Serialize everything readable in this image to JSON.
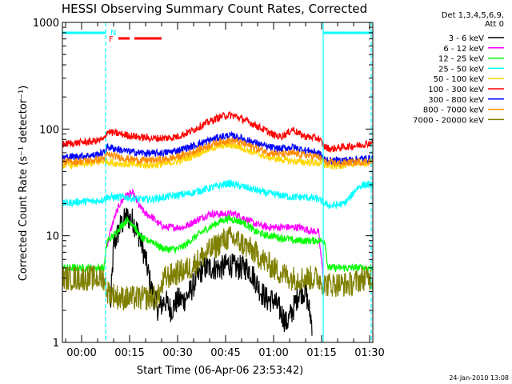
{
  "chart_data": {
    "type": "line",
    "title": "HESSI Observing Summary Count Rates, Corrected",
    "xlabel": "Start Time (06-Apr-06 23:53:42)",
    "ylabel": "Corrected Count Rate (s⁻¹ detector⁻¹)",
    "yscale": "log",
    "xlim": [
      -6,
      91
    ],
    "ylim": [
      1,
      1000
    ],
    "x_unit": "minutes after 00:00",
    "x_ticks": [
      {
        "value": 0,
        "label": "00:00"
      },
      {
        "value": 15,
        "label": "00:15"
      },
      {
        "value": 30,
        "label": "00:30"
      },
      {
        "value": 45,
        "label": "00:45"
      },
      {
        "value": 60,
        "label": "01:00"
      },
      {
        "value": 75,
        "label": "01:15"
      },
      {
        "value": 90,
        "label": "01:30"
      }
    ],
    "y_ticks": [
      {
        "value": 1,
        "label": "1"
      },
      {
        "value": 10,
        "label": "10"
      },
      {
        "value": 100,
        "label": "100"
      },
      {
        "value": 1000,
        "label": "1000"
      }
    ],
    "legend_position": "top-right, outside plot",
    "legend_header": [
      "Det 1,3,4,5,6,9,",
      "Att 0"
    ],
    "series": [
      {
        "name": "3 - 6 keV",
        "color": "#000000",
        "points": [
          [
            -6,
            null
          ],
          [
            8,
            null
          ],
          [
            9,
            2
          ],
          [
            10,
            8
          ],
          [
            12,
            12
          ],
          [
            14,
            15
          ],
          [
            16,
            14
          ],
          [
            18,
            10
          ],
          [
            20,
            6
          ],
          [
            22,
            3
          ],
          [
            24,
            2
          ],
          [
            26,
            2.5
          ],
          [
            28,
            2
          ],
          [
            30,
            2.5
          ],
          [
            32,
            2.5
          ],
          [
            34,
            3
          ],
          [
            36,
            4
          ],
          [
            38,
            5
          ],
          [
            40,
            5
          ],
          [
            42,
            5
          ],
          [
            44,
            5
          ],
          [
            46,
            5.5
          ],
          [
            48,
            5
          ],
          [
            50,
            5
          ],
          [
            52,
            5
          ],
          [
            54,
            4
          ],
          [
            56,
            3
          ],
          [
            58,
            2.5
          ],
          [
            60,
            2.5
          ],
          [
            62,
            2
          ],
          [
            64,
            1.5
          ],
          [
            66,
            2
          ],
          [
            68,
            3
          ],
          [
            70,
            3
          ],
          [
            72,
            1.5
          ],
          [
            74,
            null
          ],
          [
            91,
            null
          ]
        ]
      },
      {
        "name": "6 - 12 keV",
        "color": "#ff00ff",
        "points": [
          [
            -6,
            null
          ],
          [
            7,
            null
          ],
          [
            8,
            8
          ],
          [
            9,
            11
          ],
          [
            10,
            14
          ],
          [
            12,
            20
          ],
          [
            14,
            24
          ],
          [
            16,
            25
          ],
          [
            18,
            19
          ],
          [
            20,
            16
          ],
          [
            22,
            15
          ],
          [
            24,
            13
          ],
          [
            26,
            12
          ],
          [
            28,
            12
          ],
          [
            30,
            12
          ],
          [
            32,
            12
          ],
          [
            34,
            13
          ],
          [
            36,
            14
          ],
          [
            38,
            15
          ],
          [
            40,
            16
          ],
          [
            42,
            16
          ],
          [
            44,
            16
          ],
          [
            46,
            16
          ],
          [
            48,
            16
          ],
          [
            50,
            15
          ],
          [
            52,
            14
          ],
          [
            54,
            13
          ],
          [
            56,
            12.5
          ],
          [
            58,
            12
          ],
          [
            60,
            12
          ],
          [
            62,
            12
          ],
          [
            64,
            12
          ],
          [
            66,
            12
          ],
          [
            68,
            12
          ],
          [
            70,
            11.5
          ],
          [
            72,
            11
          ],
          [
            74,
            11
          ],
          [
            76,
            3
          ],
          [
            77,
            null
          ],
          [
            91,
            null
          ]
        ]
      },
      {
        "name": "12 - 25 keV",
        "color": "#00ff00",
        "points": [
          [
            -6,
            5
          ],
          [
            0,
            5
          ],
          [
            4,
            5
          ],
          [
            7,
            5
          ],
          [
            8,
            9
          ],
          [
            10,
            10
          ],
          [
            12,
            12
          ],
          [
            14,
            14
          ],
          [
            16,
            13
          ],
          [
            18,
            10
          ],
          [
            20,
            9
          ],
          [
            22,
            9
          ],
          [
            24,
            8
          ],
          [
            26,
            7.5
          ],
          [
            28,
            7.5
          ],
          [
            30,
            7.5
          ],
          [
            32,
            8
          ],
          [
            34,
            9
          ],
          [
            36,
            10
          ],
          [
            38,
            11
          ],
          [
            40,
            12
          ],
          [
            42,
            13
          ],
          [
            44,
            14
          ],
          [
            46,
            14.5
          ],
          [
            48,
            14
          ],
          [
            50,
            13.5
          ],
          [
            52,
            12.5
          ],
          [
            54,
            11
          ],
          [
            56,
            10.5
          ],
          [
            58,
            10
          ],
          [
            60,
            10
          ],
          [
            62,
            9.5
          ],
          [
            64,
            9.5
          ],
          [
            66,
            9
          ],
          [
            68,
            9
          ],
          [
            70,
            9
          ],
          [
            72,
            9
          ],
          [
            74,
            9
          ],
          [
            76,
            9
          ],
          [
            77,
            5
          ],
          [
            80,
            5
          ],
          [
            84,
            5
          ],
          [
            88,
            5
          ],
          [
            91,
            5
          ]
        ]
      },
      {
        "name": "25 - 50 keV",
        "color": "#00ffff",
        "points": [
          [
            -6,
            20
          ],
          [
            0,
            21
          ],
          [
            4,
            21
          ],
          [
            7,
            22
          ],
          [
            8,
            23
          ],
          [
            10,
            23
          ],
          [
            14,
            23
          ],
          [
            18,
            22
          ],
          [
            22,
            22
          ],
          [
            26,
            23
          ],
          [
            30,
            24
          ],
          [
            34,
            25
          ],
          [
            38,
            27
          ],
          [
            42,
            29
          ],
          [
            44,
            30
          ],
          [
            46,
            31
          ],
          [
            48,
            30
          ],
          [
            50,
            29
          ],
          [
            54,
            27
          ],
          [
            58,
            25
          ],
          [
            62,
            24
          ],
          [
            66,
            23
          ],
          [
            70,
            23
          ],
          [
            74,
            22
          ],
          [
            76,
            20
          ],
          [
            78,
            19
          ],
          [
            82,
            20
          ],
          [
            84,
            23
          ],
          [
            86,
            28
          ],
          [
            88,
            30
          ],
          [
            91,
            30
          ]
        ]
      },
      {
        "name": "50 - 100 keV",
        "color": "#ffd700",
        "points": [
          [
            -6,
            46
          ],
          [
            0,
            47
          ],
          [
            4,
            48
          ],
          [
            7,
            50
          ],
          [
            8,
            50
          ],
          [
            10,
            48
          ],
          [
            14,
            47
          ],
          [
            18,
            46
          ],
          [
            22,
            46
          ],
          [
            26,
            47
          ],
          [
            30,
            50
          ],
          [
            34,
            55
          ],
          [
            38,
            62
          ],
          [
            42,
            68
          ],
          [
            44,
            70
          ],
          [
            46,
            71
          ],
          [
            48,
            70
          ],
          [
            50,
            67
          ],
          [
            54,
            60
          ],
          [
            58,
            55
          ],
          [
            62,
            52
          ],
          [
            66,
            50
          ],
          [
            70,
            49
          ],
          [
            74,
            48
          ],
          [
            76,
            46
          ],
          [
            78,
            45
          ],
          [
            82,
            46
          ],
          [
            86,
            48
          ],
          [
            91,
            49
          ]
        ]
      },
      {
        "name": "100 - 300 keV",
        "color": "#ff0000",
        "points": [
          [
            -6,
            72
          ],
          [
            0,
            75
          ],
          [
            4,
            77
          ],
          [
            7,
            80
          ],
          [
            8,
            95
          ],
          [
            10,
            92
          ],
          [
            14,
            88
          ],
          [
            18,
            84
          ],
          [
            22,
            82
          ],
          [
            26,
            82
          ],
          [
            30,
            85
          ],
          [
            34,
            95
          ],
          [
            38,
            110
          ],
          [
            42,
            125
          ],
          [
            44,
            132
          ],
          [
            46,
            135
          ],
          [
            48,
            132
          ],
          [
            50,
            125
          ],
          [
            54,
            110
          ],
          [
            58,
            95
          ],
          [
            60,
            88
          ],
          [
            62,
            85
          ],
          [
            64,
            90
          ],
          [
            66,
            100
          ],
          [
            68,
            90
          ],
          [
            70,
            85
          ],
          [
            74,
            82
          ],
          [
            76,
            68
          ],
          [
            78,
            65
          ],
          [
            82,
            68
          ],
          [
            86,
            70
          ],
          [
            88,
            72
          ],
          [
            91,
            75
          ]
        ]
      },
      {
        "name": "300 - 800 keV",
        "color": "#0000ff",
        "points": [
          [
            -6,
            54
          ],
          [
            0,
            56
          ],
          [
            4,
            57
          ],
          [
            7,
            60
          ],
          [
            8,
            68
          ],
          [
            10,
            66
          ],
          [
            14,
            62
          ],
          [
            18,
            60
          ],
          [
            22,
            59
          ],
          [
            26,
            60
          ],
          [
            30,
            63
          ],
          [
            34,
            68
          ],
          [
            38,
            75
          ],
          [
            42,
            82
          ],
          [
            44,
            85
          ],
          [
            46,
            87
          ],
          [
            48,
            85
          ],
          [
            50,
            82
          ],
          [
            54,
            75
          ],
          [
            58,
            68
          ],
          [
            62,
            65
          ],
          [
            66,
            68
          ],
          [
            68,
            65
          ],
          [
            70,
            63
          ],
          [
            74,
            60
          ],
          [
            76,
            52
          ],
          [
            78,
            50
          ],
          [
            82,
            51
          ],
          [
            86,
            52
          ],
          [
            91,
            53
          ]
        ]
      },
      {
        "name": "800 - 7000 keV",
        "color": "#ff8c00",
        "points": [
          [
            -6,
            49
          ],
          [
            0,
            50
          ],
          [
            4,
            51
          ],
          [
            7,
            53
          ],
          [
            8,
            58
          ],
          [
            10,
            56
          ],
          [
            14,
            53
          ],
          [
            18,
            51
          ],
          [
            22,
            51
          ],
          [
            26,
            52
          ],
          [
            30,
            55
          ],
          [
            34,
            60
          ],
          [
            38,
            67
          ],
          [
            42,
            74
          ],
          [
            44,
            77
          ],
          [
            46,
            78
          ],
          [
            48,
            77
          ],
          [
            50,
            74
          ],
          [
            54,
            67
          ],
          [
            58,
            61
          ],
          [
            62,
            58
          ],
          [
            66,
            59
          ],
          [
            70,
            57
          ],
          [
            74,
            55
          ],
          [
            76,
            49
          ],
          [
            78,
            48
          ],
          [
            82,
            48
          ],
          [
            86,
            49
          ],
          [
            91,
            50
          ]
        ]
      },
      {
        "name": "7000 - 20000 keV",
        "color": "#808000",
        "points": [
          [
            -6,
            4
          ],
          [
            0,
            4
          ],
          [
            4,
            4
          ],
          [
            7,
            4
          ],
          [
            8,
            3
          ],
          [
            12,
            2.6
          ],
          [
            16,
            2.6
          ],
          [
            20,
            2.6
          ],
          [
            24,
            2.7
          ],
          [
            26,
            4
          ],
          [
            30,
            4.5
          ],
          [
            34,
            5
          ],
          [
            38,
            6.5
          ],
          [
            42,
            8
          ],
          [
            44,
            9
          ],
          [
            46,
            9.5
          ],
          [
            48,
            9.2
          ],
          [
            50,
            8.5
          ],
          [
            54,
            7
          ],
          [
            58,
            5.5
          ],
          [
            62,
            4.5
          ],
          [
            66,
            4
          ],
          [
            70,
            4
          ],
          [
            74,
            4
          ],
          [
            76,
            3.5
          ],
          [
            80,
            3.5
          ],
          [
            84,
            3.5
          ],
          [
            88,
            4
          ],
          [
            91,
            4
          ]
        ]
      }
    ],
    "annotations": {
      "flag_N": {
        "label": "N",
        "color": "#00ffff",
        "bars": [
          [
            -6,
            7.5
          ],
          [
            75.5,
            91
          ]
        ]
      },
      "flag_F": {
        "label": "F",
        "color": "#ff0000",
        "bars": [
          [
            11.5,
            15
          ],
          [
            16.5,
            25
          ]
        ]
      },
      "vertical_lines": [
        {
          "x": 7.5,
          "style": "dashed",
          "color": "#00ffff"
        },
        {
          "x": 75.5,
          "style": "solid",
          "color": "#00ffff"
        },
        {
          "x": 90.5,
          "style": "dashed",
          "color": "#00ffff"
        }
      ]
    },
    "grid": false
  },
  "footer": {
    "timestamp": "24-Jan-2010 13:08"
  }
}
